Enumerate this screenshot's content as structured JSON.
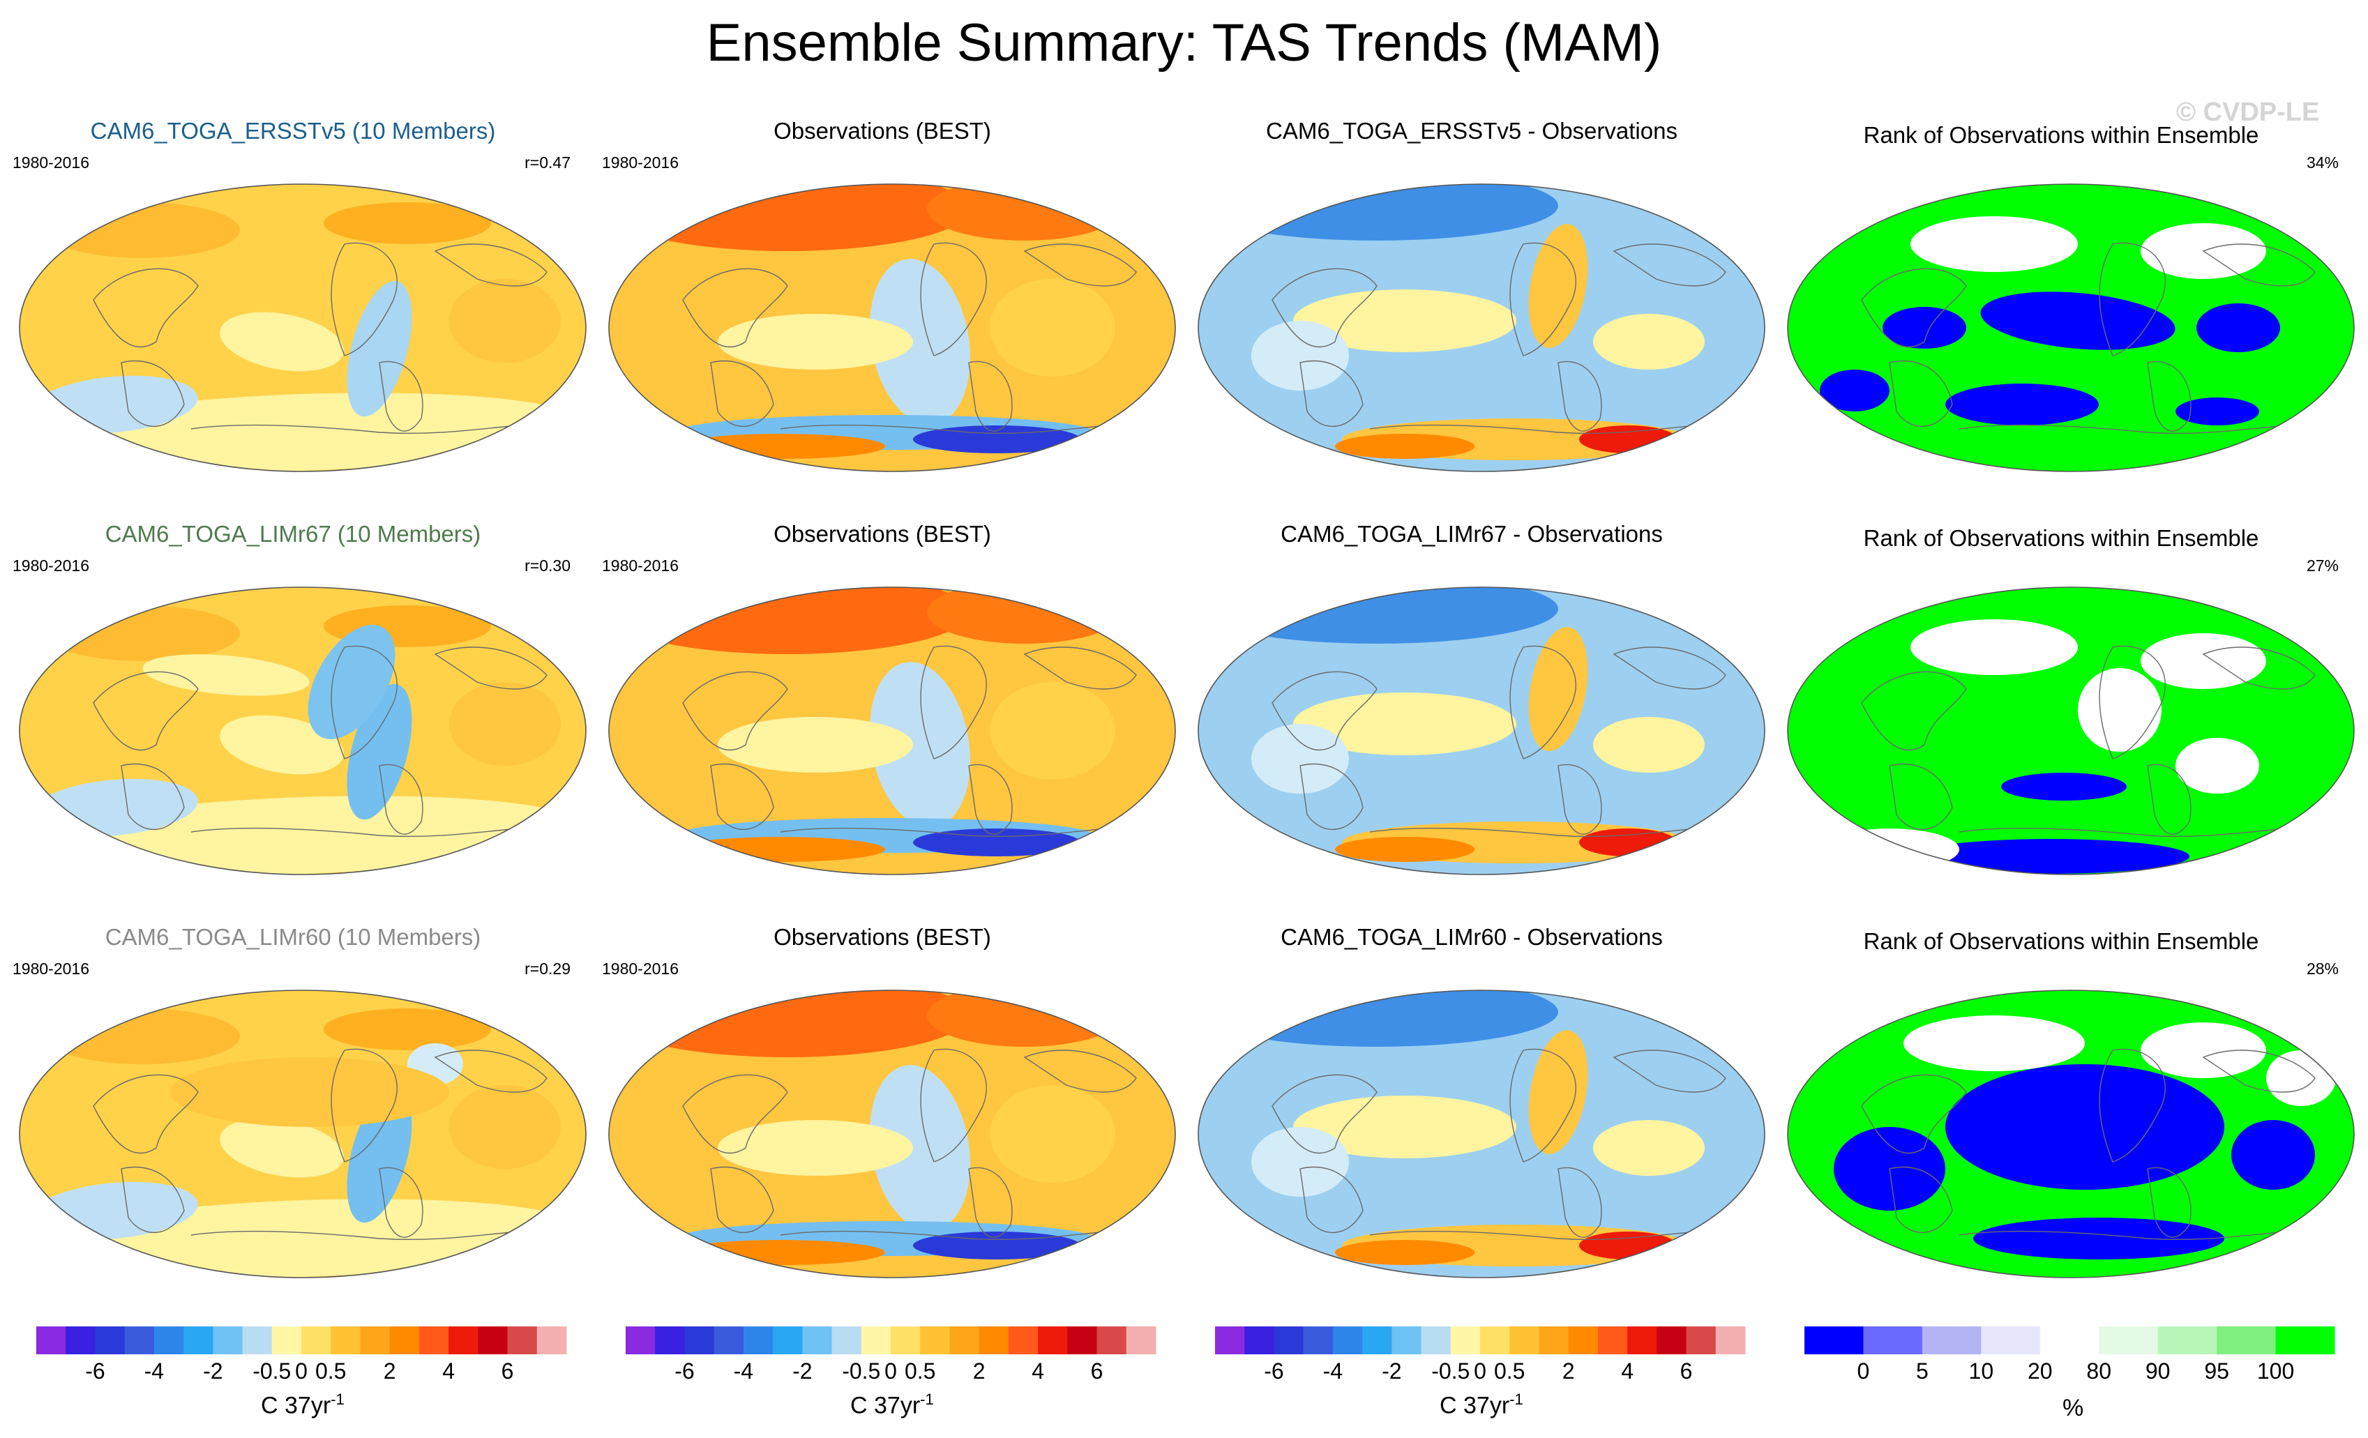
{
  "title": "Ensemble Summary: TAS Trends (MAM)",
  "watermark": "© CVDP-LE",
  "rows": [
    {
      "model": {
        "title": "CAM6_TOGA_ERSSTv5 (10 Members)",
        "title_color": "#1a5f8c",
        "period": "1980-2016",
        "stat": "r=0.47"
      },
      "obs": {
        "title": "Observations (BEST)",
        "period": "1980-2016"
      },
      "diff": {
        "title": "CAM6_TOGA_ERSSTv5 - Observations"
      },
      "rank": {
        "title": "Rank of Observations within Ensemble",
        "stat": "34%"
      }
    },
    {
      "model": {
        "title": "CAM6_TOGA_LIMr67 (10 Members)",
        "title_color": "#4f7a4f",
        "period": "1980-2016",
        "stat": "r=0.30"
      },
      "obs": {
        "title": "Observations (BEST)",
        "period": "1980-2016"
      },
      "diff": {
        "title": "CAM6_TOGA_LIMr67 - Observations"
      },
      "rank": {
        "title": "Rank of Observations within Ensemble",
        "stat": "27%"
      }
    },
    {
      "model": {
        "title": "CAM6_TOGA_LIMr60 (10 Members)",
        "title_color": "#8a8a8a",
        "period": "1980-2016",
        "stat": "r=0.29"
      },
      "obs": {
        "title": "Observations (BEST)",
        "period": "1980-2016"
      },
      "diff": {
        "title": "CAM6_TOGA_LIMr60 - Observations"
      },
      "rank": {
        "title": "Rank of Observations within Ensemble",
        "stat": "28%"
      }
    }
  ],
  "chart_data": [
    {
      "type": "heatmap",
      "description_kind": "map-panels",
      "variable": "TAS trend",
      "season": "MAM",
      "period": "1980-2016",
      "colorbar": {
        "colors": [
          "#8a2be2",
          "#3a20e0",
          "#2a3ad8",
          "#3a5cdc",
          "#2f86ea",
          "#2aa7f2",
          "#6ec2f4",
          "#b8dcf2",
          "#fff7a6",
          "#ffe066",
          "#ffc233",
          "#ffa51a",
          "#ff8a00",
          "#ff5a1a",
          "#ee1a0a",
          "#c80014",
          "#d84a4a",
          "#f4b0b0"
        ],
        "tick_labels": [
          "-6",
          "-4",
          "-2",
          "-0.5",
          "0",
          "0.5",
          "2",
          "4",
          "6"
        ],
        "tick_boundary_index": [
          2,
          4,
          6,
          8,
          9,
          10,
          12,
          14,
          16
        ],
        "unit": "C 37yr",
        "unit_exp": "-1"
      }
    },
    {
      "type": "heatmap",
      "description_kind": "rank-panels",
      "colorbar": {
        "colors": [
          "#0000ff",
          "#6a6aff",
          "#b4b4f4",
          "#e6e6fa",
          "#ffffff",
          "#e4fae4",
          "#b8f5b8",
          "#80f080",
          "#00ff00"
        ],
        "tick_labels": [
          "0",
          "5",
          "10",
          "20",
          "80",
          "90",
          "95",
          "100"
        ],
        "tick_boundary_index": [
          1,
          2,
          3,
          4,
          5,
          6,
          7,
          8
        ],
        "unit": "%"
      }
    }
  ]
}
